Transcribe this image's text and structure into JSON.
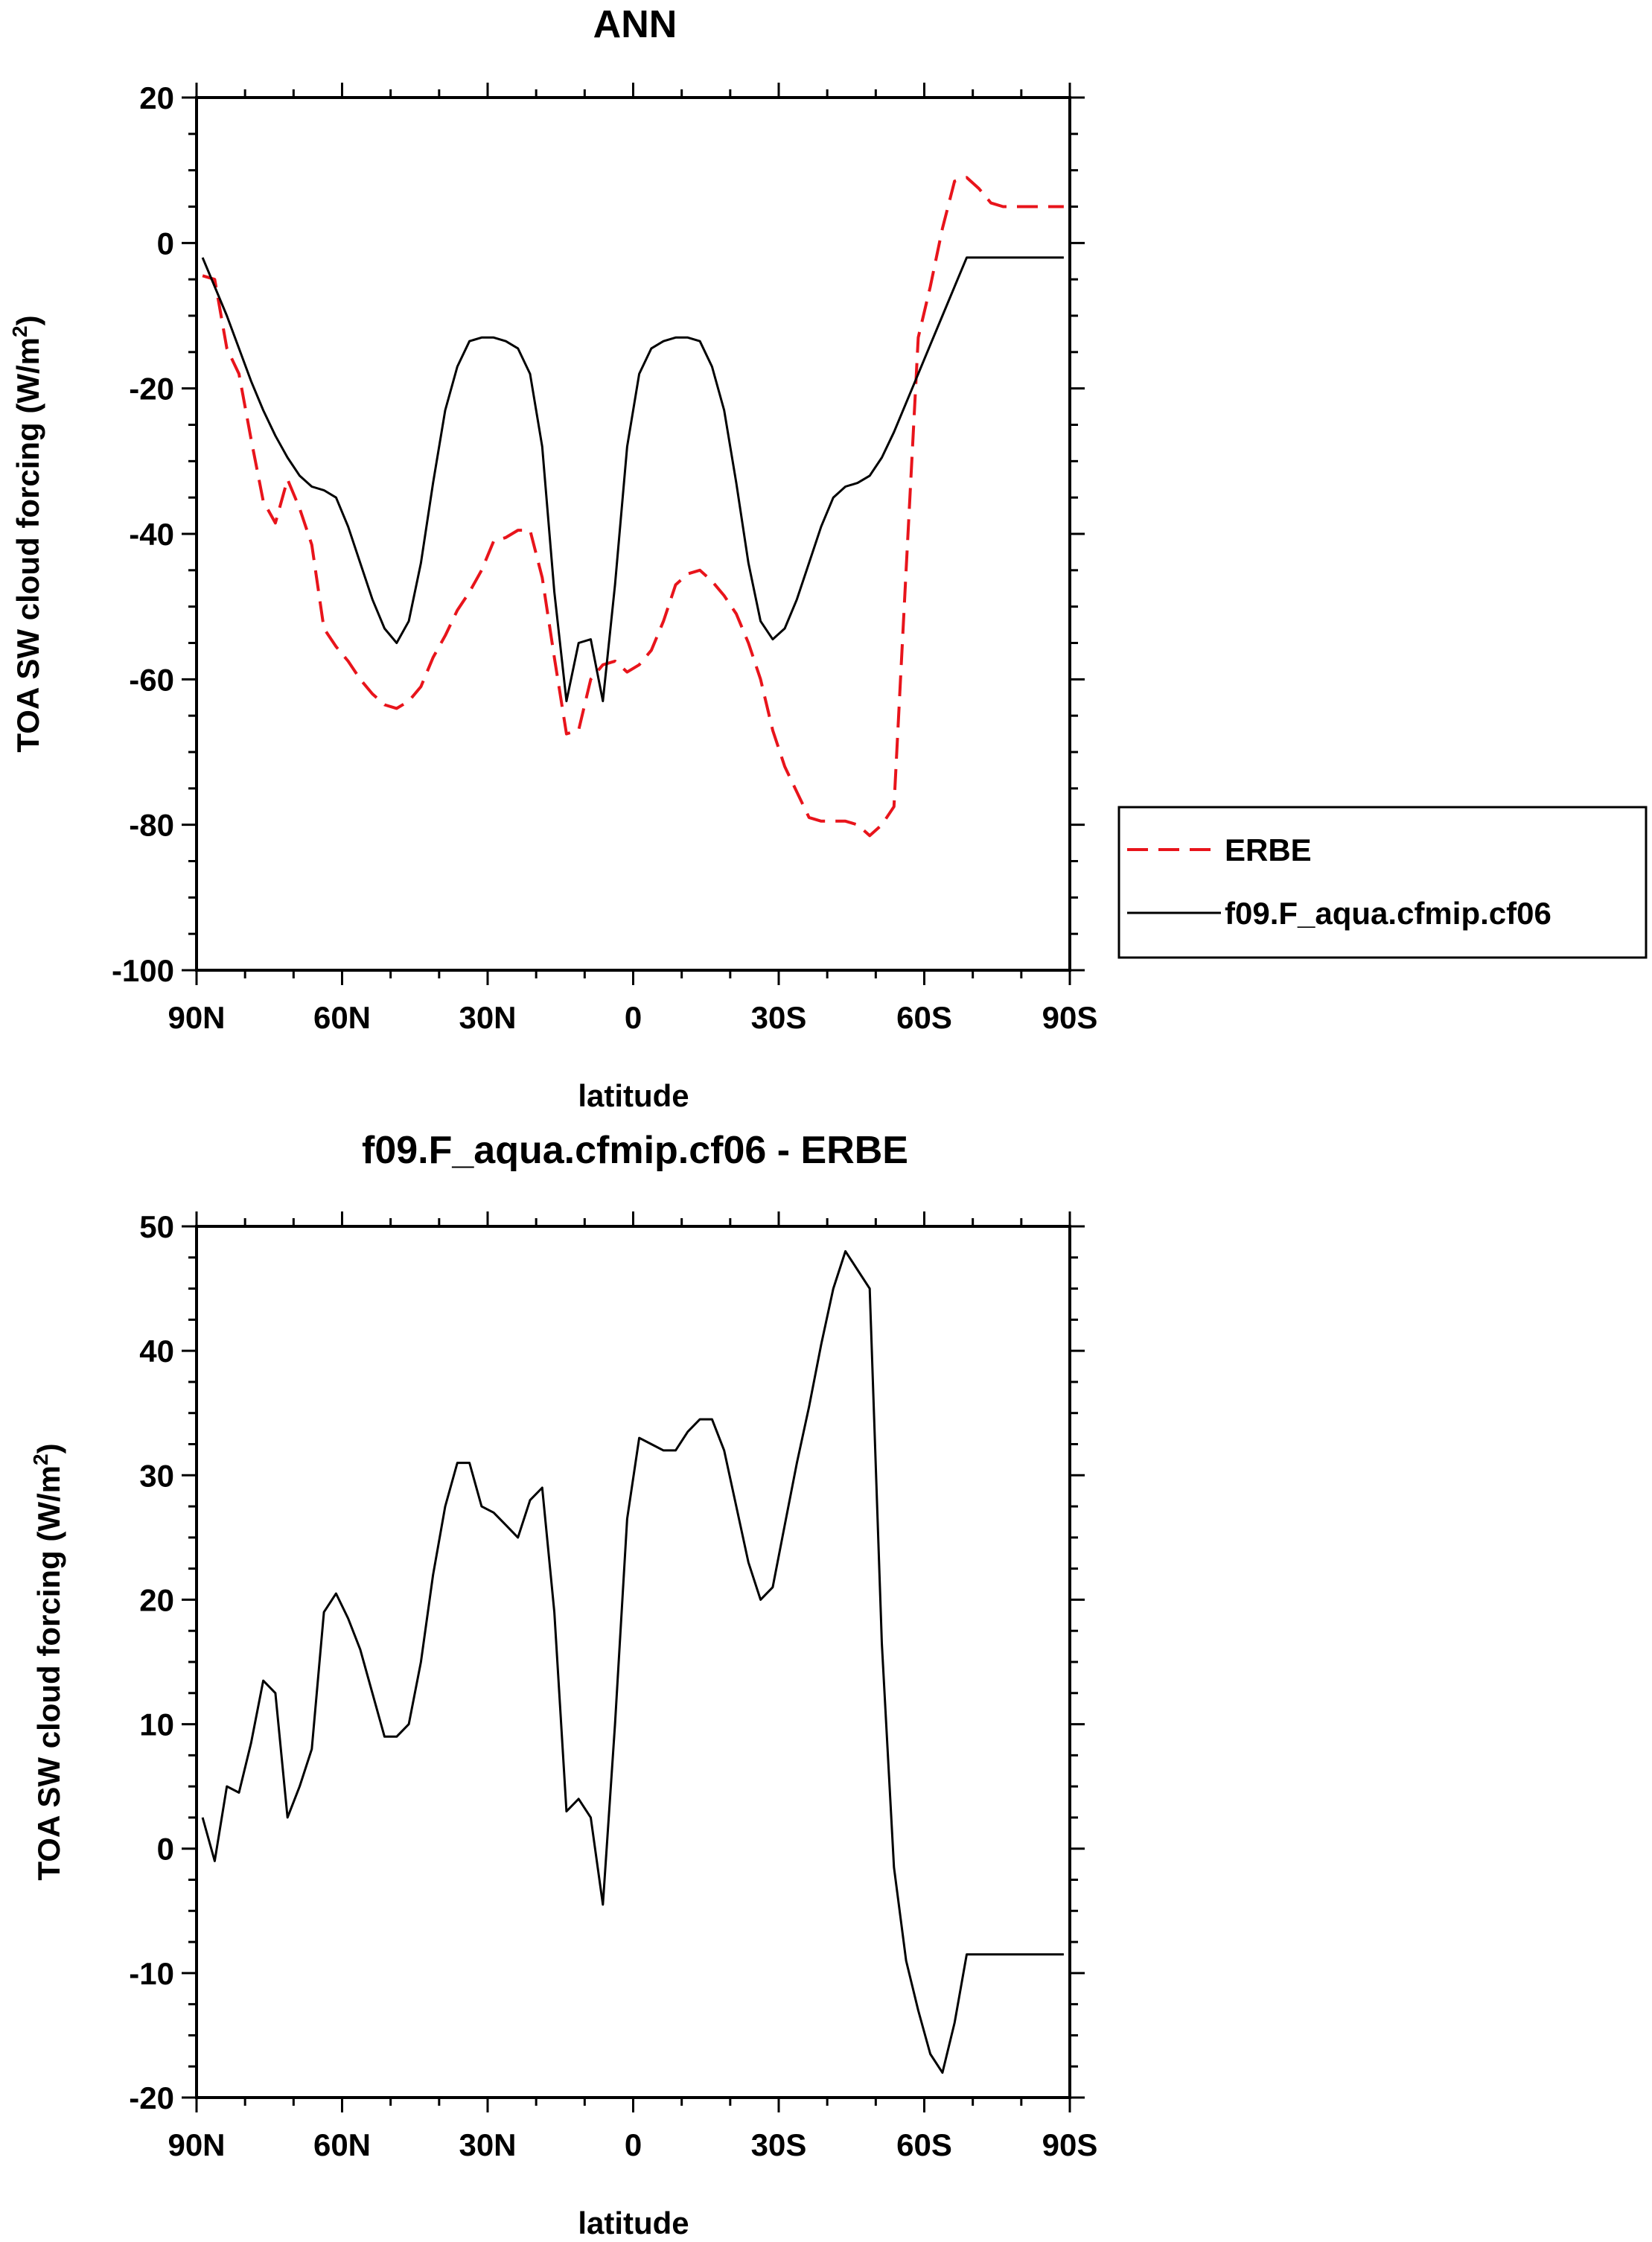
{
  "chart_data": [
    {
      "type": "line",
      "title": "ANN",
      "xlabel": "latitude",
      "ylabel_main": "TOA SW cloud forcing (W/m",
      "ylabel_sup": "2",
      "ylabel_close": ")",
      "xlim": [
        90,
        -90
      ],
      "ylim": [
        -100,
        20
      ],
      "x_ticks": [
        90,
        60,
        30,
        0,
        -30,
        -60,
        -90
      ],
      "x_tick_labels": [
        "90N",
        "60N",
        "30N",
        "0",
        "30S",
        "60S",
        "90S"
      ],
      "y_ticks": [
        20,
        0,
        -20,
        -40,
        -60,
        -80,
        -100
      ],
      "y_tick_labels": [
        "20",
        "0",
        "-20",
        "-40",
        "-60",
        "-80",
        "-100"
      ],
      "legend": {
        "placement": "right",
        "entries": [
          "ERBE",
          "f09.F_aqua.cfmip.cf06"
        ]
      },
      "series": [
        {
          "name": "ERBE",
          "color": "#e8141b",
          "dash": "dashed",
          "x": [
            88.75,
            86.25,
            83.75,
            81.25,
            78.75,
            76.25,
            73.75,
            71.25,
            68.75,
            66.25,
            63.75,
            61.25,
            58.75,
            56.25,
            53.75,
            51.25,
            48.75,
            46.25,
            43.75,
            41.25,
            38.75,
            36.25,
            33.75,
            31.25,
            28.75,
            26.25,
            23.75,
            21.25,
            18.75,
            16.25,
            13.75,
            11.25,
            8.75,
            6.25,
            3.75,
            1.25,
            -1.25,
            -3.75,
            -6.25,
            -8.75,
            -11.25,
            -13.75,
            -16.25,
            -18.75,
            -21.25,
            -23.75,
            -26.25,
            -28.75,
            -31.25,
            -33.75,
            -36.25,
            -38.75,
            -41.25,
            -43.75,
            -46.25,
            -48.75,
            -51.25,
            -53.75,
            -56.25,
            -58.75,
            -61.25,
            -63.75,
            -66.25,
            -68.75,
            -71.25,
            -73.75,
            -76.25,
            -78.75,
            -81.25,
            -83.75,
            -86.25,
            -88.75
          ],
          "y": [
            -4.5,
            -5,
            -14.5,
            -18,
            -27,
            -35.5,
            -38.5,
            -32.5,
            -36.5,
            -41.5,
            -53,
            -55.5,
            -57.5,
            -60,
            -62,
            -63.5,
            -64,
            -63,
            -61,
            -57,
            -54,
            -50.5,
            -48,
            -45,
            -41,
            -40.5,
            -39.5,
            -39.5,
            -46,
            -57,
            -67.5,
            -67,
            -60,
            -58,
            -57.5,
            -59,
            -58,
            -56,
            -52,
            -47,
            -45.5,
            -45,
            -46.5,
            -48.5,
            -51,
            -55,
            -60,
            -67,
            -72,
            -75.5,
            -79,
            -79.5,
            -79.5,
            -79.5,
            -80,
            -81.5,
            -80,
            -77.5,
            -45,
            -13,
            -6,
            2,
            8.5,
            9,
            7.5,
            5.5,
            5,
            5,
            5,
            5,
            5,
            5
          ]
        },
        {
          "name": "f09.F_aqua.cfmip.cf06",
          "color": "#000000",
          "dash": "solid",
          "x": [
            88.75,
            86.25,
            83.75,
            81.25,
            78.75,
            76.25,
            73.75,
            71.25,
            68.75,
            66.25,
            63.75,
            61.25,
            58.75,
            56.25,
            53.75,
            51.25,
            48.75,
            46.25,
            43.75,
            41.25,
            38.75,
            36.25,
            33.75,
            31.25,
            28.75,
            26.25,
            23.75,
            21.25,
            18.75,
            16.25,
            13.75,
            11.25,
            8.75,
            6.25,
            3.75,
            1.25,
            -1.25,
            -3.75,
            -6.25,
            -8.75,
            -11.25,
            -13.75,
            -16.25,
            -18.75,
            -21.25,
            -23.75,
            -26.25,
            -28.75,
            -31.25,
            -33.75,
            -36.25,
            -38.75,
            -41.25,
            -43.75,
            -46.25,
            -48.75,
            -51.25,
            -53.75,
            -56.25,
            -58.75,
            -61.25,
            -63.75,
            -66.25,
            -68.75,
            -71.25,
            -73.75,
            -76.25,
            -78.75,
            -81.25,
            -83.75,
            -86.25,
            -88.75
          ],
          "y": [
            -2,
            -6,
            -10,
            -14.5,
            -19,
            -23,
            -26.5,
            -29.5,
            -32,
            -33.5,
            -34,
            -35,
            -39,
            -44,
            -49,
            -53,
            -55,
            -52,
            -44,
            -33,
            -23,
            -17,
            -13.5,
            -13,
            -13,
            -13.5,
            -14.5,
            -18,
            -28,
            -48,
            -63,
            -55,
            -54.5,
            -63,
            -47,
            -28,
            -18,
            -14.5,
            -13.5,
            -13,
            -13,
            -13.5,
            -17,
            -23,
            -33,
            -44,
            -52,
            -54.5,
            -53,
            -49,
            -44,
            -39,
            -35,
            -33.5,
            -33,
            -32,
            -29.5,
            -26,
            -22,
            -18,
            -14,
            -10,
            -6,
            -2,
            -2,
            -2,
            -2,
            -2,
            -2,
            -2,
            -2,
            -2
          ]
        }
      ]
    },
    {
      "type": "line",
      "title": "f09.F_aqua.cfmip.cf06 - ERBE",
      "xlabel": "latitude",
      "ylabel_main": "TOA SW cloud forcing (W/m",
      "ylabel_sup": "2",
      "ylabel_close": ")",
      "xlim": [
        90,
        -90
      ],
      "ylim": [
        -20,
        50
      ],
      "x_ticks": [
        90,
        60,
        30,
        0,
        -30,
        -60,
        -90
      ],
      "x_tick_labels": [
        "90N",
        "60N",
        "30N",
        "0",
        "30S",
        "60S",
        "90S"
      ],
      "y_ticks": [
        50,
        40,
        30,
        20,
        10,
        0,
        -10,
        -20
      ],
      "y_tick_labels": [
        "50",
        "40",
        "30",
        "20",
        "10",
        "0",
        "-10",
        "-20"
      ],
      "series": [
        {
          "color": "#000000",
          "dash": "solid",
          "x": [
            88.75,
            86.25,
            83.75,
            81.25,
            78.75,
            76.25,
            73.75,
            71.25,
            68.75,
            66.25,
            63.75,
            61.25,
            58.75,
            56.25,
            53.75,
            51.25,
            48.75,
            46.25,
            43.75,
            41.25,
            38.75,
            36.25,
            33.75,
            31.25,
            28.75,
            26.25,
            23.75,
            21.25,
            18.75,
            16.25,
            13.75,
            11.25,
            8.75,
            6.25,
            3.75,
            1.25,
            -1.25,
            -3.75,
            -6.25,
            -8.75,
            -11.25,
            -13.75,
            -16.25,
            -18.75,
            -21.25,
            -23.75,
            -26.25,
            -28.75,
            -31.25,
            -33.75,
            -36.25,
            -38.75,
            -41.25,
            -43.75,
            -46.25,
            -48.75,
            -51.25,
            -53.75,
            -56.25,
            -58.75,
            -61.25,
            -63.75,
            -66.25,
            -68.75,
            -71.25,
            -73.75,
            -76.25,
            -78.75,
            -81.25,
            -83.75,
            -86.25,
            -88.75
          ],
          "y": [
            2.5,
            -1,
            5,
            4.5,
            8.5,
            13.5,
            12.5,
            2.5,
            5,
            8,
            19,
            20.5,
            18.5,
            16,
            12.5,
            9,
            9,
            10,
            15,
            22,
            27.5,
            31,
            31,
            27.5,
            27,
            26,
            25,
            28,
            29,
            19,
            3,
            4,
            2.5,
            -4.5,
            10,
            26.5,
            33,
            32.5,
            32,
            32,
            33.5,
            34.5,
            34.5,
            32,
            27.5,
            23,
            20,
            21,
            26,
            31,
            35.5,
            40.5,
            45,
            48,
            46.5,
            45,
            16.5,
            -1.5,
            -9,
            -13,
            -16.5,
            -18,
            -14,
            -8.5,
            -8.5,
            -8.5,
            -8.5,
            -8.5,
            -8.5,
            -8.5,
            -8.5,
            -8.5
          ]
        }
      ]
    }
  ]
}
